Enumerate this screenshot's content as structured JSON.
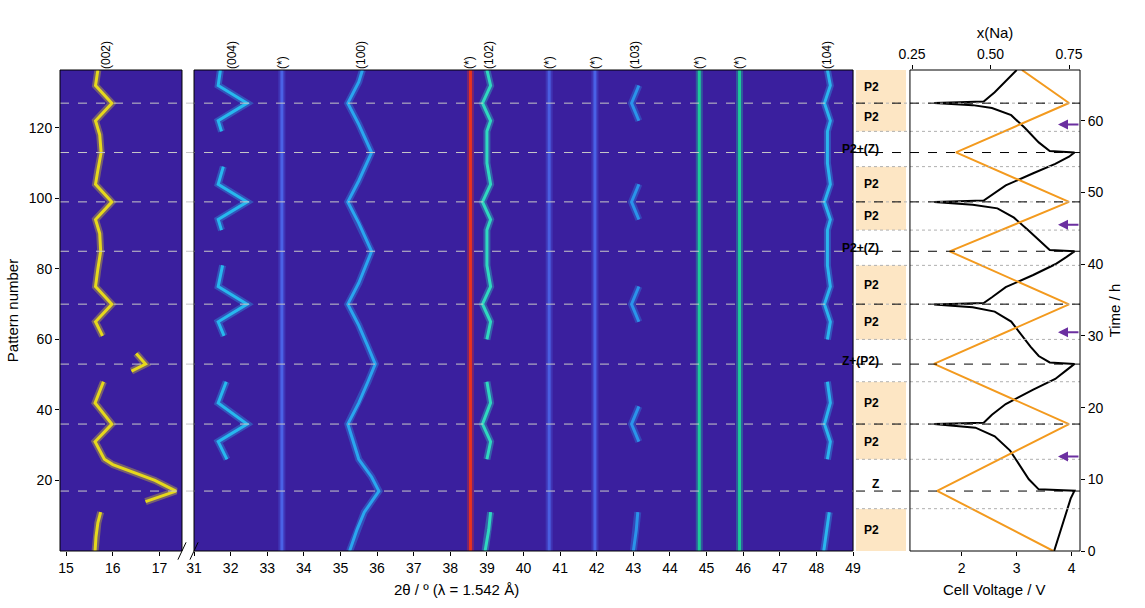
{
  "chart_data": {
    "type": "line",
    "xlabel": "2θ / º (λ = 1.542 Å)",
    "ylabel": "Pattern number",
    "xlim": [
      14.87,
      17.48
    ],
    "xticks": [
      15,
      16,
      17
    ],
    "x2lim": [
      31,
      49
    ],
    "x2ticks": [
      31,
      32,
      33,
      34,
      35,
      36,
      37,
      38,
      39,
      40,
      41,
      42,
      43,
      44,
      45,
      46,
      47,
      48,
      49
    ],
    "ylim": [
      0,
      136.4
    ],
    "yticks": [
      20,
      40,
      60,
      80,
      100,
      120
    ],
    "top_xticks": [
      {
        "value": 15.85,
        "label": "(002)"
      },
      {
        "value": 32.05,
        "label": "(004)"
      },
      {
        "value": 33.4,
        "label": "(*)"
      },
      {
        "value": 35.55,
        "label": "(100)"
      },
      {
        "value": 38.5,
        "label": "(*)"
      },
      {
        "value": 39.05,
        "label": "(102)"
      },
      {
        "value": 40.7,
        "label": "(*)"
      },
      {
        "value": 41.95,
        "label": "(*)"
      },
      {
        "value": 43.05,
        "label": "(103)"
      },
      {
        "value": 44.8,
        "label": "(*)"
      },
      {
        "value": 45.9,
        "label": "(*)"
      },
      {
        "value": 48.3,
        "label": "(104)"
      }
    ],
    "color": "#3a1f9e",
    "series": [
      {
        "name": "(002)",
        "color": "#e6d81c",
        "points": [
          [
            15.62,
            0
          ],
          [
            15.64,
            4
          ],
          [
            15.68,
            8
          ],
          [
            15.74,
            11
          ],
          [
            null,
            12
          ],
          [
            16.7,
            14
          ],
          [
            17.35,
            17
          ],
          [
            16.9,
            20
          ],
          [
            16.3,
            23
          ],
          [
            16.0,
            24.5
          ],
          [
            15.82,
            26
          ],
          [
            15.62,
            31
          ],
          [
            15.98,
            36
          ],
          [
            15.62,
            42
          ],
          [
            15.8,
            48
          ],
          [
            null,
            50
          ],
          [
            16.4,
            51
          ],
          [
            16.7,
            53
          ],
          [
            16.5,
            56
          ],
          [
            null,
            58
          ],
          [
            15.78,
            61
          ],
          [
            15.63,
            65
          ],
          [
            15.98,
            70
          ],
          [
            15.63,
            75
          ],
          [
            15.68,
            80
          ],
          [
            15.74,
            85
          ],
          [
            15.72,
            90
          ],
          [
            15.63,
            94
          ],
          [
            15.98,
            99
          ],
          [
            15.63,
            104
          ],
          [
            15.68,
            108
          ],
          [
            15.75,
            113
          ],
          [
            15.72,
            118
          ],
          [
            15.63,
            122
          ],
          [
            15.98,
            127
          ],
          [
            15.63,
            132
          ],
          [
            15.68,
            136.4
          ]
        ]
      },
      {
        "name": "(004)",
        "color": "#27b8ee",
        "points": [
          [
            31.9,
            26
          ],
          [
            31.66,
            31
          ],
          [
            32.45,
            36
          ],
          [
            31.66,
            42
          ],
          [
            31.88,
            48
          ],
          [
            null,
            50
          ],
          [
            31.82,
            61
          ],
          [
            31.66,
            65
          ],
          [
            32.45,
            70
          ],
          [
            31.66,
            75
          ],
          [
            31.78,
            81
          ],
          [
            null,
            83
          ],
          [
            31.75,
            91
          ],
          [
            31.66,
            94
          ],
          [
            32.45,
            99
          ],
          [
            31.66,
            104
          ],
          [
            31.8,
            109
          ],
          [
            null,
            111
          ],
          [
            31.75,
            119
          ],
          [
            31.66,
            122
          ],
          [
            32.45,
            127
          ],
          [
            31.66,
            132
          ],
          [
            31.72,
            136.4
          ]
        ]
      },
      {
        "name": "(*)",
        "color": "#4a62e6",
        "points": [
          [
            33.4,
            0
          ],
          [
            33.4,
            136.4
          ]
        ]
      },
      {
        "name": "(100)",
        "color": "#2aa6ef",
        "points": [
          [
            35.25,
            0
          ],
          [
            35.45,
            6
          ],
          [
            35.65,
            11
          ],
          [
            35.85,
            14
          ],
          [
            36.05,
            17
          ],
          [
            35.85,
            21
          ],
          [
            35.5,
            26
          ],
          [
            35.2,
            36
          ],
          [
            35.5,
            42
          ],
          [
            35.75,
            48
          ],
          [
            35.95,
            53
          ],
          [
            35.75,
            58
          ],
          [
            35.5,
            64
          ],
          [
            35.2,
            70
          ],
          [
            35.5,
            76
          ],
          [
            35.85,
            85
          ],
          [
            35.5,
            93
          ],
          [
            35.2,
            99
          ],
          [
            35.5,
            105
          ],
          [
            35.85,
            113
          ],
          [
            35.5,
            121
          ],
          [
            35.2,
            127
          ],
          [
            35.5,
            133
          ],
          [
            35.6,
            136.4
          ]
        ]
      },
      {
        "name": "(*)",
        "color": "#e8321e",
        "points": [
          [
            38.55,
            0
          ],
          [
            38.55,
            136.4
          ]
        ]
      },
      {
        "name": "(102)",
        "color": "#2fd9c0",
        "points": [
          [
            38.95,
            0
          ],
          [
            39.05,
            6
          ],
          [
            39.1,
            11
          ],
          [
            null,
            12
          ],
          [
            39.0,
            26
          ],
          [
            39.1,
            31
          ],
          [
            38.88,
            36
          ],
          [
            39.1,
            42
          ],
          [
            39.0,
            48
          ],
          [
            null,
            50
          ],
          [
            39.0,
            60
          ],
          [
            39.1,
            65
          ],
          [
            38.88,
            70
          ],
          [
            39.1,
            75
          ],
          [
            39.0,
            81
          ],
          [
            39.0,
            91
          ],
          [
            39.1,
            94
          ],
          [
            38.88,
            99
          ],
          [
            39.1,
            104
          ],
          [
            39.0,
            110
          ],
          [
            39.0,
            119
          ],
          [
            39.1,
            122
          ],
          [
            38.88,
            127
          ],
          [
            39.1,
            132
          ],
          [
            39.0,
            136.4
          ]
        ]
      },
      {
        "name": "(*)",
        "color": "#4a5ee0",
        "points": [
          [
            40.7,
            0
          ],
          [
            40.7,
            136.4
          ]
        ]
      },
      {
        "name": "(*)",
        "color": "#4a62e6",
        "points": [
          [
            41.95,
            0
          ],
          [
            41.95,
            136.4
          ]
        ]
      },
      {
        "name": "(103)",
        "color": "#2b93ea",
        "points": [
          [
            43.0,
            0
          ],
          [
            43.08,
            6
          ],
          [
            43.12,
            11
          ],
          [
            null,
            12
          ],
          [
            43.15,
            31
          ],
          [
            42.95,
            36
          ],
          [
            43.15,
            41
          ],
          [
            null,
            42
          ],
          [
            43.15,
            65
          ],
          [
            42.95,
            70
          ],
          [
            43.15,
            75
          ],
          [
            null,
            76
          ],
          [
            43.15,
            94
          ],
          [
            42.95,
            99
          ],
          [
            43.15,
            104
          ],
          [
            null,
            105
          ],
          [
            43.15,
            122
          ],
          [
            42.95,
            127
          ],
          [
            43.15,
            132
          ]
        ]
      },
      {
        "name": "(*)",
        "color": "#1ec99a",
        "points": [
          [
            44.8,
            0
          ],
          [
            44.8,
            136.4
          ]
        ]
      },
      {
        "name": "(*)",
        "color": "#1ec99a",
        "points": [
          [
            45.9,
            0
          ],
          [
            45.9,
            136.4
          ]
        ]
      },
      {
        "name": "(104)",
        "color": "#2bb6ee",
        "points": [
          [
            48.2,
            0
          ],
          [
            48.28,
            6
          ],
          [
            48.35,
            11
          ],
          [
            null,
            12
          ],
          [
            48.3,
            26
          ],
          [
            48.38,
            31
          ],
          [
            48.22,
            36
          ],
          [
            48.38,
            42
          ],
          [
            48.3,
            48
          ],
          [
            null,
            50
          ],
          [
            48.3,
            60
          ],
          [
            48.38,
            65
          ],
          [
            48.22,
            70
          ],
          [
            48.38,
            75
          ],
          [
            48.3,
            81
          ],
          [
            48.3,
            91
          ],
          [
            48.38,
            94
          ],
          [
            48.22,
            99
          ],
          [
            48.38,
            104
          ],
          [
            48.3,
            110
          ],
          [
            48.3,
            119
          ],
          [
            48.38,
            122
          ],
          [
            48.22,
            127
          ],
          [
            48.38,
            132
          ],
          [
            48.3,
            136.4
          ]
        ]
      }
    ],
    "dashed_lines": [
      17,
      36,
      53,
      70,
      85,
      99,
      113,
      127
    ],
    "phases": [
      {
        "label": "P2",
        "from": 0,
        "to": 12,
        "color": "#fde6c4"
      },
      {
        "label": "Z",
        "from": 12,
        "to": 26,
        "color": "#ffffff"
      },
      {
        "label": "P2",
        "from": 26,
        "to": 36,
        "color": "#fde6c4"
      },
      {
        "label": "P2",
        "from": 36,
        "to": 48,
        "color": "#fde6c4"
      },
      {
        "label": "Z+(P2)",
        "from": 48,
        "to": 60,
        "color": "#ffffff"
      },
      {
        "label": "P2",
        "from": 60,
        "to": 70,
        "color": "#fde6c4"
      },
      {
        "label": "P2",
        "from": 70,
        "to": 81,
        "color": "#fde6c4"
      },
      {
        "label": "P2+(Z)",
        "from": 81,
        "to": 91,
        "color": "#ffffff"
      },
      {
        "label": "P2",
        "from": 91,
        "to": 99,
        "color": "#fde6c4"
      },
      {
        "label": "P2",
        "from": 99,
        "to": 109,
        "color": "#fde6c4"
      },
      {
        "label": "P2+(Z)",
        "from": 109,
        "to": 119,
        "color": "#ffffff"
      },
      {
        "label": "P2",
        "from": 119,
        "to": 127,
        "color": "#fde6c4"
      },
      {
        "label": "P2",
        "from": 127,
        "to": 136.4,
        "color": "#fde6c4"
      }
    ],
    "electrochemistry": {
      "type": "line",
      "xlabel": "Cell Voltage / V",
      "xlim": [
        1.06,
        4.15
      ],
      "xticks": [
        2,
        3,
        4
      ],
      "x2label": "x(Na)",
      "x2lim": [
        0.2435,
        0.785
      ],
      "x2ticks": [
        {
          "value": 0.25,
          "label": "0.25"
        },
        {
          "value": 0.5,
          "label": "0.50"
        },
        {
          "value": 0.75,
          "label": "0.75"
        }
      ],
      "ylabel": "Time / h",
      "ylim": [
        0,
        67.1
      ],
      "yticks": [
        0,
        10,
        20,
        30,
        40,
        50,
        60
      ],
      "series": [
        {
          "axis": "x",
          "color": "#000000",
          "points": [
            [
              3.68,
              0
            ],
            [
              3.74,
              1.5
            ],
            [
              3.8,
              3
            ],
            [
              3.86,
              4.5
            ],
            [
              3.92,
              6
            ],
            [
              3.98,
              7.3
            ],
            [
              4.05,
              8.4
            ],
            [
              3.4,
              8.6
            ],
            [
              3.22,
              10
            ],
            [
              3.05,
              12
            ],
            [
              2.88,
              14
            ],
            [
              2.6,
              16
            ],
            [
              2.25,
              17.2
            ],
            [
              1.5,
              17.7
            ],
            [
              2.4,
              17.9
            ],
            [
              2.55,
              19
            ],
            [
              2.8,
              20.5
            ],
            [
              3.3,
              22.5
            ],
            [
              3.7,
              24
            ],
            [
              3.9,
              25.2
            ],
            [
              4.05,
              26.1
            ],
            [
              3.6,
              26.3
            ],
            [
              3.4,
              27.2
            ],
            [
              3.25,
              28.5
            ],
            [
              3.1,
              30
            ],
            [
              2.9,
              32
            ],
            [
              2.6,
              33.4
            ],
            [
              2.2,
              34
            ],
            [
              1.5,
              34.4
            ],
            [
              2.4,
              34.6
            ],
            [
              2.55,
              35.4
            ],
            [
              2.8,
              36.8
            ],
            [
              3.3,
              38.5
            ],
            [
              3.7,
              40
            ],
            [
              3.9,
              41
            ],
            [
              4.05,
              41.8
            ],
            [
              3.6,
              42
            ],
            [
              3.45,
              43
            ],
            [
              3.2,
              44.8
            ],
            [
              2.95,
              46.5
            ],
            [
              2.65,
              47.8
            ],
            [
              2.2,
              48.3
            ],
            [
              1.5,
              48.7
            ],
            [
              2.4,
              48.9
            ],
            [
              2.55,
              49.7
            ],
            [
              2.8,
              51
            ],
            [
              3.3,
              52.7
            ],
            [
              3.7,
              54
            ],
            [
              3.95,
              55
            ],
            [
              4.05,
              55.6
            ],
            [
              3.6,
              55.8
            ],
            [
              3.4,
              57
            ],
            [
              3.15,
              59
            ],
            [
              2.9,
              60.8
            ],
            [
              2.55,
              61.8
            ],
            [
              2.2,
              62.2
            ],
            [
              1.5,
              62.5
            ],
            [
              2.4,
              62.7
            ],
            [
              2.6,
              64
            ],
            [
              2.8,
              65.5
            ],
            [
              3.0,
              67.1
            ]
          ]
        },
        {
          "axis": "x2",
          "color": "#f39a1e",
          "points": [
            [
              0.7,
              0
            ],
            [
              0.33,
              8.4
            ],
            [
              0.75,
              17.7
            ],
            [
              0.32,
              26.1
            ],
            [
              0.75,
              34.4
            ],
            [
              0.37,
              41.8
            ],
            [
              0.75,
              48.7
            ],
            [
              0.39,
              55.6
            ],
            [
              0.75,
              62.5
            ],
            [
              0.6,
              67.1
            ]
          ]
        }
      ],
      "arrows": [
        {
          "time": 13.2,
          "voltage": 3.75,
          "color": "#6b2fa0"
        },
        {
          "time": 30.5,
          "voltage": 3.75,
          "color": "#6b2fa0"
        },
        {
          "time": 45.5,
          "voltage": 3.75,
          "color": "#6b2fa0"
        },
        {
          "time": 59.5,
          "voltage": 3.75,
          "color": "#6b2fa0"
        }
      ]
    }
  }
}
